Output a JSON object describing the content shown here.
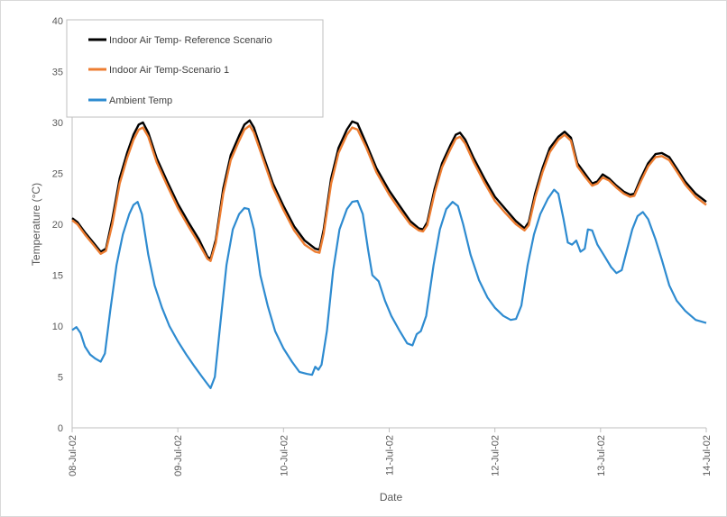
{
  "chart_data": {
    "type": "line",
    "title": "",
    "xlabel": "Date",
    "ylabel": "Temperature (°C)",
    "ylim": [
      0,
      40
    ],
    "yticks": [
      0,
      5,
      10,
      15,
      20,
      25,
      30,
      35,
      40
    ],
    "xlim": [
      "2002-07-08",
      "2002-07-14"
    ],
    "xticks": [
      "08-Jul-02",
      "09-Jul-02",
      "10-Jul-02",
      "11-Jul-02",
      "12-Jul-02",
      "13-Jul-02",
      "14-Jul-02"
    ],
    "grid": false,
    "legend_position": "top-left",
    "series": [
      {
        "name": "Indoor Air Temp- Reference Scenario",
        "color": "#000000",
        "points": [
          [
            0,
            20.6
          ],
          [
            0.05,
            20.2
          ],
          [
            0.12,
            19.2
          ],
          [
            0.2,
            18.2
          ],
          [
            0.27,
            17.3
          ],
          [
            0.32,
            17.6
          ],
          [
            0.38,
            20.5
          ],
          [
            0.45,
            24.5
          ],
          [
            0.52,
            27.0
          ],
          [
            0.58,
            28.8
          ],
          [
            0.63,
            29.8
          ],
          [
            0.67,
            30.0
          ],
          [
            0.72,
            29.0
          ],
          [
            0.8,
            26.5
          ],
          [
            0.9,
            24.2
          ],
          [
            1.0,
            22.0
          ],
          [
            1.1,
            20.2
          ],
          [
            1.2,
            18.5
          ],
          [
            1.28,
            16.8
          ],
          [
            1.31,
            16.6
          ],
          [
            1.36,
            18.5
          ],
          [
            1.43,
            23.5
          ],
          [
            1.5,
            26.8
          ],
          [
            1.58,
            28.7
          ],
          [
            1.63,
            29.8
          ],
          [
            1.68,
            30.2
          ],
          [
            1.72,
            29.5
          ],
          [
            1.8,
            27.0
          ],
          [
            1.9,
            24.0
          ],
          [
            2.0,
            21.8
          ],
          [
            2.1,
            19.8
          ],
          [
            2.2,
            18.4
          ],
          [
            2.3,
            17.6
          ],
          [
            2.34,
            17.5
          ],
          [
            2.38,
            19.5
          ],
          [
            2.45,
            24.5
          ],
          [
            2.52,
            27.5
          ],
          [
            2.6,
            29.3
          ],
          [
            2.65,
            30.1
          ],
          [
            2.7,
            29.9
          ],
          [
            2.78,
            28.0
          ],
          [
            2.88,
            25.5
          ],
          [
            3.0,
            23.3
          ],
          [
            3.1,
            21.8
          ],
          [
            3.2,
            20.3
          ],
          [
            3.28,
            19.6
          ],
          [
            3.32,
            19.5
          ],
          [
            3.36,
            20.2
          ],
          [
            3.43,
            23.5
          ],
          [
            3.5,
            26.0
          ],
          [
            3.58,
            27.8
          ],
          [
            3.63,
            28.8
          ],
          [
            3.67,
            29.0
          ],
          [
            3.72,
            28.3
          ],
          [
            3.8,
            26.5
          ],
          [
            3.9,
            24.5
          ],
          [
            4.0,
            22.7
          ],
          [
            4.1,
            21.5
          ],
          [
            4.2,
            20.3
          ],
          [
            4.28,
            19.6
          ],
          [
            4.32,
            20.2
          ],
          [
            4.38,
            23.0
          ],
          [
            4.45,
            25.5
          ],
          [
            4.52,
            27.5
          ],
          [
            4.6,
            28.6
          ],
          [
            4.66,
            29.1
          ],
          [
            4.72,
            28.5
          ],
          [
            4.78,
            26.0
          ],
          [
            4.85,
            25.0
          ],
          [
            4.92,
            24.0
          ],
          [
            4.97,
            24.2
          ],
          [
            5.02,
            24.9
          ],
          [
            5.08,
            24.5
          ],
          [
            5.15,
            23.8
          ],
          [
            5.22,
            23.2
          ],
          [
            5.28,
            22.9
          ],
          [
            5.32,
            23.0
          ],
          [
            5.38,
            24.5
          ],
          [
            5.45,
            26.0
          ],
          [
            5.52,
            26.9
          ],
          [
            5.58,
            27.0
          ],
          [
            5.65,
            26.6
          ],
          [
            5.72,
            25.5
          ],
          [
            5.8,
            24.2
          ],
          [
            5.9,
            23.0
          ],
          [
            6.0,
            22.2
          ]
        ]
      },
      {
        "name": "Indoor Air Temp-Scenario 1",
        "color": "#ed7d31",
        "points": [
          [
            0,
            20.4
          ],
          [
            0.05,
            20.0
          ],
          [
            0.12,
            19.0
          ],
          [
            0.2,
            18.0
          ],
          [
            0.27,
            17.1
          ],
          [
            0.32,
            17.4
          ],
          [
            0.38,
            20.0
          ],
          [
            0.45,
            24.0
          ],
          [
            0.52,
            26.5
          ],
          [
            0.58,
            28.3
          ],
          [
            0.63,
            29.3
          ],
          [
            0.67,
            29.5
          ],
          [
            0.72,
            28.6
          ],
          [
            0.8,
            26.1
          ],
          [
            0.9,
            23.8
          ],
          [
            1.0,
            21.6
          ],
          [
            1.1,
            19.8
          ],
          [
            1.2,
            18.1
          ],
          [
            1.28,
            16.6
          ],
          [
            1.31,
            16.4
          ],
          [
            1.36,
            18.2
          ],
          [
            1.43,
            23.0
          ],
          [
            1.5,
            26.3
          ],
          [
            1.58,
            28.2
          ],
          [
            1.63,
            29.3
          ],
          [
            1.68,
            29.7
          ],
          [
            1.72,
            29.0
          ],
          [
            1.8,
            26.6
          ],
          [
            1.9,
            23.6
          ],
          [
            2.0,
            21.4
          ],
          [
            2.1,
            19.4
          ],
          [
            2.2,
            18.0
          ],
          [
            2.3,
            17.3
          ],
          [
            2.34,
            17.2
          ],
          [
            2.38,
            19.1
          ],
          [
            2.45,
            24.0
          ],
          [
            2.52,
            27.0
          ],
          [
            2.6,
            28.8
          ],
          [
            2.65,
            29.5
          ],
          [
            2.7,
            29.3
          ],
          [
            2.78,
            27.6
          ],
          [
            2.88,
            25.1
          ],
          [
            3.0,
            22.9
          ],
          [
            3.1,
            21.4
          ],
          [
            3.2,
            20.0
          ],
          [
            3.28,
            19.4
          ],
          [
            3.32,
            19.3
          ],
          [
            3.36,
            19.9
          ],
          [
            3.43,
            23.1
          ],
          [
            3.5,
            25.6
          ],
          [
            3.58,
            27.4
          ],
          [
            3.63,
            28.4
          ],
          [
            3.67,
            28.6
          ],
          [
            3.72,
            27.9
          ],
          [
            3.8,
            26.1
          ],
          [
            3.9,
            24.1
          ],
          [
            4.0,
            22.3
          ],
          [
            4.1,
            21.1
          ],
          [
            4.2,
            20.0
          ],
          [
            4.28,
            19.4
          ],
          [
            4.32,
            19.9
          ],
          [
            4.38,
            22.6
          ],
          [
            4.45,
            25.1
          ],
          [
            4.52,
            27.1
          ],
          [
            4.6,
            28.3
          ],
          [
            4.66,
            28.8
          ],
          [
            4.72,
            28.2
          ],
          [
            4.78,
            25.7
          ],
          [
            4.85,
            24.7
          ],
          [
            4.92,
            23.8
          ],
          [
            4.97,
            24.0
          ],
          [
            5.02,
            24.6
          ],
          [
            5.08,
            24.3
          ],
          [
            5.15,
            23.6
          ],
          [
            5.22,
            23.0
          ],
          [
            5.28,
            22.7
          ],
          [
            5.32,
            22.8
          ],
          [
            5.38,
            24.2
          ],
          [
            5.45,
            25.7
          ],
          [
            5.52,
            26.6
          ],
          [
            5.58,
            26.7
          ],
          [
            5.65,
            26.3
          ],
          [
            5.72,
            25.2
          ],
          [
            5.8,
            23.9
          ],
          [
            5.9,
            22.7
          ],
          [
            6.0,
            21.9
          ]
        ]
      },
      {
        "name": "Ambient Temp",
        "color": "#2e8bd0",
        "points": [
          [
            0,
            9.6
          ],
          [
            0.04,
            9.9
          ],
          [
            0.08,
            9.3
          ],
          [
            0.12,
            8.0
          ],
          [
            0.17,
            7.2
          ],
          [
            0.22,
            6.8
          ],
          [
            0.27,
            6.5
          ],
          [
            0.31,
            7.3
          ],
          [
            0.36,
            11.5
          ],
          [
            0.42,
            16.0
          ],
          [
            0.48,
            19.0
          ],
          [
            0.54,
            21.0
          ],
          [
            0.58,
            21.9
          ],
          [
            0.62,
            22.2
          ],
          [
            0.66,
            21.0
          ],
          [
            0.72,
            17.0
          ],
          [
            0.78,
            14.0
          ],
          [
            0.85,
            11.8
          ],
          [
            0.92,
            10.0
          ],
          [
            1.0,
            8.5
          ],
          [
            1.08,
            7.2
          ],
          [
            1.16,
            6.0
          ],
          [
            1.23,
            5.0
          ],
          [
            1.28,
            4.3
          ],
          [
            1.31,
            3.9
          ],
          [
            1.35,
            5.0
          ],
          [
            1.4,
            10.0
          ],
          [
            1.46,
            16.0
          ],
          [
            1.52,
            19.5
          ],
          [
            1.58,
            21.0
          ],
          [
            1.63,
            21.6
          ],
          [
            1.67,
            21.5
          ],
          [
            1.72,
            19.5
          ],
          [
            1.78,
            15.0
          ],
          [
            1.85,
            12.0
          ],
          [
            1.92,
            9.5
          ],
          [
            2.0,
            7.8
          ],
          [
            2.08,
            6.5
          ],
          [
            2.15,
            5.5
          ],
          [
            2.22,
            5.3
          ],
          [
            2.27,
            5.2
          ],
          [
            2.3,
            6.0
          ],
          [
            2.33,
            5.7
          ],
          [
            2.36,
            6.2
          ],
          [
            2.41,
            9.5
          ],
          [
            2.47,
            15.5
          ],
          [
            2.53,
            19.5
          ],
          [
            2.6,
            21.5
          ],
          [
            2.65,
            22.2
          ],
          [
            2.7,
            22.3
          ],
          [
            2.75,
            21.0
          ],
          [
            2.8,
            17.5
          ],
          [
            2.84,
            15.0
          ],
          [
            2.9,
            14.4
          ],
          [
            2.96,
            12.5
          ],
          [
            3.02,
            11.0
          ],
          [
            3.1,
            9.5
          ],
          [
            3.17,
            8.3
          ],
          [
            3.22,
            8.1
          ],
          [
            3.26,
            9.2
          ],
          [
            3.3,
            9.5
          ],
          [
            3.35,
            11.0
          ],
          [
            3.42,
            16.0
          ],
          [
            3.48,
            19.5
          ],
          [
            3.54,
            21.5
          ],
          [
            3.6,
            22.2
          ],
          [
            3.65,
            21.8
          ],
          [
            3.7,
            20.0
          ],
          [
            3.77,
            17.0
          ],
          [
            3.85,
            14.5
          ],
          [
            3.93,
            12.8
          ],
          [
            4.0,
            11.8
          ],
          [
            4.08,
            11.0
          ],
          [
            4.15,
            10.6
          ],
          [
            4.2,
            10.7
          ],
          [
            4.25,
            12.0
          ],
          [
            4.31,
            16.0
          ],
          [
            4.37,
            19.0
          ],
          [
            4.43,
            21.0
          ],
          [
            4.5,
            22.5
          ],
          [
            4.56,
            23.4
          ],
          [
            4.6,
            23.0
          ],
          [
            4.65,
            20.5
          ],
          [
            4.69,
            18.2
          ],
          [
            4.73,
            18.0
          ],
          [
            4.77,
            18.4
          ],
          [
            4.81,
            17.3
          ],
          [
            4.85,
            17.6
          ],
          [
            4.88,
            19.5
          ],
          [
            4.92,
            19.4
          ],
          [
            4.97,
            18.0
          ],
          [
            5.03,
            17.0
          ],
          [
            5.1,
            15.8
          ],
          [
            5.15,
            15.2
          ],
          [
            5.2,
            15.5
          ],
          [
            5.25,
            17.5
          ],
          [
            5.3,
            19.5
          ],
          [
            5.35,
            20.8
          ],
          [
            5.4,
            21.2
          ],
          [
            5.45,
            20.5
          ],
          [
            5.52,
            18.5
          ],
          [
            5.58,
            16.5
          ],
          [
            5.65,
            14.0
          ],
          [
            5.72,
            12.5
          ],
          [
            5.8,
            11.5
          ],
          [
            5.9,
            10.6
          ],
          [
            6.0,
            10.3
          ]
        ]
      }
    ]
  }
}
